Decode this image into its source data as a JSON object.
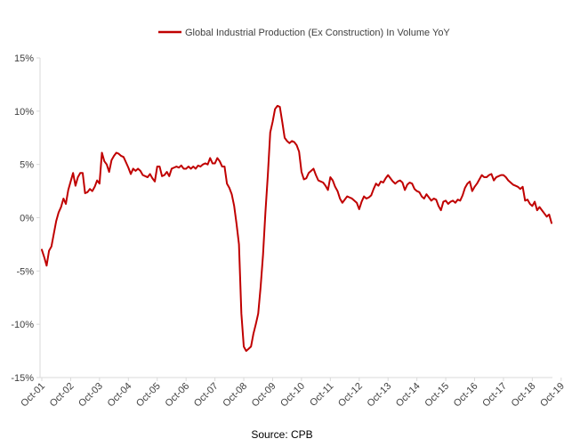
{
  "chart_data": {
    "type": "line",
    "series": [
      {
        "name": "Global Industrial Production (Ex Construction) In Volume YoY",
        "color": "#c00000",
        "values": [
          -3.0,
          -3.7,
          -4.5,
          -3.1,
          -2.7,
          -1.5,
          -0.3,
          0.5,
          1.0,
          1.8,
          1.3,
          2.6,
          3.4,
          4.2,
          3.0,
          3.8,
          4.2,
          4.2,
          2.3,
          2.4,
          2.7,
          2.5,
          2.9,
          3.5,
          3.2,
          6.1,
          5.3,
          5.0,
          4.3,
          5.4,
          5.8,
          6.1,
          6.0,
          5.8,
          5.7,
          5.2,
          4.7,
          4.1,
          4.6,
          4.4,
          4.6,
          4.4,
          4.0,
          3.9,
          3.8,
          4.1,
          3.7,
          3.4,
          4.8,
          4.8,
          3.9,
          4.0,
          4.3,
          3.9,
          4.6,
          4.7,
          4.8,
          4.7,
          4.9,
          4.6,
          4.6,
          4.8,
          4.6,
          4.8,
          4.6,
          4.9,
          4.8,
          5.0,
          5.1,
          5.0,
          5.6,
          5.1,
          5.1,
          5.6,
          5.3,
          4.8,
          4.8,
          3.2,
          2.8,
          2.2,
          1.1,
          -0.6,
          -2.5,
          -9.0,
          -12.1,
          -12.5,
          -12.3,
          -12.1,
          -10.9,
          -10.0,
          -9.0,
          -6.5,
          -3.5,
          0.5,
          4.0,
          8.0,
          9.0,
          10.2,
          10.5,
          10.4,
          9.0,
          7.5,
          7.2,
          7.0,
          7.2,
          7.1,
          6.8,
          6.2,
          4.3,
          3.6,
          3.7,
          4.2,
          4.4,
          4.6,
          4.0,
          3.5,
          3.4,
          3.3,
          3.0,
          2.6,
          3.8,
          3.5,
          2.9,
          2.5,
          1.8,
          1.4,
          1.7,
          2.0,
          1.9,
          1.8,
          1.6,
          1.4,
          0.8,
          1.5,
          2.0,
          1.8,
          1.9,
          2.1,
          2.7,
          3.2,
          3.0,
          3.4,
          3.3,
          3.7,
          4.0,
          3.7,
          3.4,
          3.2,
          3.4,
          3.5,
          3.3,
          2.6,
          3.1,
          3.3,
          3.2,
          2.7,
          2.5,
          2.4,
          2.0,
          1.8,
          2.2,
          1.9,
          1.6,
          1.8,
          1.7,
          1.1,
          0.7,
          1.5,
          1.6,
          1.3,
          1.5,
          1.6,
          1.4,
          1.7,
          1.6,
          2.1,
          2.8,
          3.2,
          3.4,
          2.5,
          2.9,
          3.2,
          3.6,
          4.0,
          3.8,
          3.8,
          4.0,
          4.1,
          3.5,
          3.8,
          3.9,
          4.0,
          4.0,
          3.8,
          3.5,
          3.3,
          3.1,
          3.0,
          2.9,
          2.7,
          2.9,
          1.6,
          1.7,
          1.3,
          1.1,
          1.5,
          0.7,
          1.0,
          0.7,
          0.4,
          0.1,
          0.3,
          -0.5
        ],
        "x_start": "Oct-01",
        "frequency": "monthly"
      }
    ],
    "x_tick_labels": [
      "Oct-01",
      "Oct-02",
      "Oct-03",
      "Oct-04",
      "Oct-05",
      "Oct-06",
      "Oct-07",
      "Oct-08",
      "Oct-09",
      "Oct-10",
      "Oct-11",
      "Oct-12",
      "Oct-13",
      "Oct-14",
      "Oct-15",
      "Oct-16",
      "Oct-17",
      "Oct-18",
      "Oct-19"
    ],
    "y_tick_labels": [
      "15%",
      "10%",
      "5%",
      "0%",
      "-5%",
      "-10%",
      "-15%"
    ],
    "y_ticks": [
      15,
      10,
      5,
      0,
      -5,
      -10,
      -15
    ],
    "ylim": [
      -15,
      15
    ],
    "y_unit": "%",
    "grid": false,
    "legend_position": "top",
    "source": "Source: CPB"
  }
}
